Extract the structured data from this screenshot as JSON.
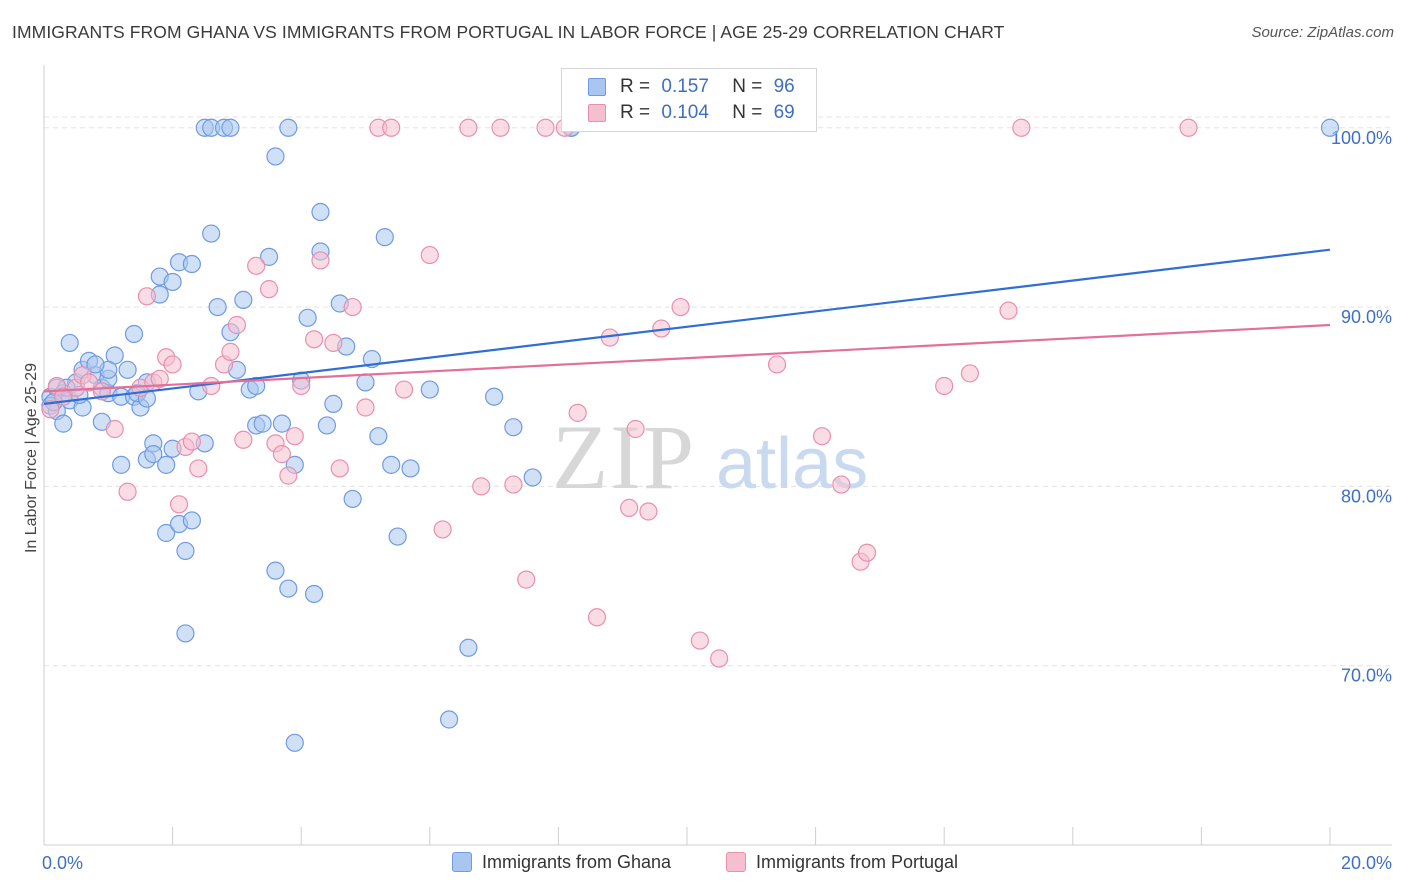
{
  "title": "IMMIGRANTS FROM GHANA VS IMMIGRANTS FROM PORTUGAL IN LABOR FORCE | AGE 25-29 CORRELATION CHART",
  "source": "Source: ZipAtlas.com",
  "watermark": {
    "zip": "ZIP",
    "atlas": "atlas"
  },
  "colors": {
    "ghana_fill": "#a9c6f0",
    "ghana_stroke": "#6f9be0",
    "ghana_line": "#2f6fd4",
    "portugal_fill": "#f6bfd0",
    "portugal_stroke": "#e98fae",
    "portugal_line": "#e2709a",
    "tick_text": "#3f6fc4",
    "grid": "#e3e3e3"
  },
  "legend": {
    "r_label": "R =",
    "n_label": "N =",
    "ghana": {
      "r": "0.157",
      "n": "96"
    },
    "portugal": {
      "r": "0.104",
      "n": "69"
    }
  },
  "chart_data": {
    "type": "scatter",
    "xlabel": "",
    "ylabel": "In Labor Force | Age 25-29",
    "xlim": [
      0,
      20
    ],
    "ylim": [
      60,
      103.5
    ],
    "x_tick_labels": [
      "0.0%",
      "20.0%"
    ],
    "y_ticks": [
      70,
      80,
      90,
      100
    ],
    "y_tick_labels": [
      "70.0%",
      "80.0%",
      "90.0%",
      "100.0%"
    ],
    "grid": true,
    "legend_position": "bottom",
    "series": [
      {
        "name": "Immigrants from Ghana",
        "trend": {
          "x": [
            0,
            20
          ],
          "y": [
            84.6,
            93.2
          ]
        },
        "points": [
          [
            0.1,
            85.0
          ],
          [
            0.1,
            84.5
          ],
          [
            0.2,
            85.5
          ],
          [
            0.2,
            84.2
          ],
          [
            0.3,
            85.2
          ],
          [
            0.3,
            83.5
          ],
          [
            0.4,
            88.0
          ],
          [
            0.4,
            84.8
          ],
          [
            0.5,
            85.8
          ],
          [
            0.6,
            86.5
          ],
          [
            0.6,
            84.4
          ],
          [
            0.7,
            87.0
          ],
          [
            0.8,
            86.2
          ],
          [
            0.9,
            85.5
          ],
          [
            0.9,
            83.6
          ],
          [
            1.0,
            85.2
          ],
          [
            1.0,
            86.0
          ],
          [
            1.1,
            87.3
          ],
          [
            1.2,
            81.2
          ],
          [
            1.2,
            85.0
          ],
          [
            1.3,
            86.5
          ],
          [
            1.4,
            88.5
          ],
          [
            1.4,
            85.0
          ],
          [
            1.5,
            84.4
          ],
          [
            1.6,
            81.5
          ],
          [
            1.6,
            85.8
          ],
          [
            1.7,
            82.4
          ],
          [
            1.7,
            81.8
          ],
          [
            1.8,
            90.7
          ],
          [
            1.8,
            91.7
          ],
          [
            1.9,
            77.4
          ],
          [
            1.9,
            81.2
          ],
          [
            2.0,
            82.1
          ],
          [
            2.0,
            91.4
          ],
          [
            2.1,
            92.5
          ],
          [
            2.1,
            77.9
          ],
          [
            2.2,
            71.8
          ],
          [
            2.2,
            76.4
          ],
          [
            2.3,
            78.1
          ],
          [
            2.4,
            85.3
          ],
          [
            2.5,
            82.4
          ],
          [
            2.5,
            100.0
          ],
          [
            2.6,
            94.1
          ],
          [
            2.6,
            100.0
          ],
          [
            2.7,
            90.0
          ],
          [
            2.8,
            100.0
          ],
          [
            2.9,
            100.0
          ],
          [
            2.9,
            88.6
          ],
          [
            3.0,
            86.5
          ],
          [
            3.1,
            90.4
          ],
          [
            3.2,
            85.4
          ],
          [
            3.3,
            85.6
          ],
          [
            3.3,
            83.4
          ],
          [
            3.4,
            83.5
          ],
          [
            3.5,
            92.8
          ],
          [
            3.6,
            98.4
          ],
          [
            3.6,
            75.3
          ],
          [
            3.7,
            83.5
          ],
          [
            3.8,
            100.0
          ],
          [
            3.8,
            74.3
          ],
          [
            3.9,
            81.2
          ],
          [
            3.9,
            65.7
          ],
          [
            4.0,
            85.9
          ],
          [
            4.1,
            89.4
          ],
          [
            4.2,
            74.0
          ],
          [
            4.3,
            95.3
          ],
          [
            4.3,
            93.1
          ],
          [
            4.4,
            83.4
          ],
          [
            4.5,
            84.6
          ],
          [
            4.6,
            90.2
          ],
          [
            4.7,
            87.8
          ],
          [
            4.8,
            79.3
          ],
          [
            5.0,
            85.8
          ],
          [
            5.1,
            87.1
          ],
          [
            5.2,
            82.8
          ],
          [
            5.3,
            93.9
          ],
          [
            5.4,
            81.2
          ],
          [
            5.5,
            77.2
          ],
          [
            1.0,
            86.5
          ],
          [
            0.8,
            86.8
          ],
          [
            5.7,
            81.0
          ],
          [
            6.0,
            85.4
          ],
          [
            6.3,
            67.0
          ],
          [
            6.6,
            71.0
          ],
          [
            7.0,
            85.0
          ],
          [
            7.3,
            83.3
          ],
          [
            7.6,
            80.5
          ],
          [
            8.2,
            100.0
          ],
          [
            8.2,
            100.0
          ],
          [
            0.15,
            84.7
          ],
          [
            0.35,
            85.5
          ],
          [
            0.55,
            85.1
          ],
          [
            1.45,
            85.2
          ],
          [
            1.6,
            84.9
          ],
          [
            2.3,
            92.4
          ],
          [
            20.0,
            100.0
          ]
        ]
      },
      {
        "name": "Immigrants from Portugal",
        "trend": {
          "x": [
            0,
            20
          ],
          "y": [
            85.3,
            89.0
          ]
        },
        "points": [
          [
            0.1,
            84.3
          ],
          [
            0.2,
            85.6
          ],
          [
            0.3,
            85.0
          ],
          [
            0.5,
            85.5
          ],
          [
            0.6,
            86.2
          ],
          [
            0.7,
            85.8
          ],
          [
            0.9,
            85.3
          ],
          [
            1.1,
            83.2
          ],
          [
            1.3,
            79.7
          ],
          [
            1.5,
            85.5
          ],
          [
            1.6,
            90.6
          ],
          [
            1.7,
            85.8
          ],
          [
            1.8,
            86.0
          ],
          [
            1.9,
            87.2
          ],
          [
            2.0,
            86.8
          ],
          [
            2.1,
            79.0
          ],
          [
            2.2,
            82.2
          ],
          [
            2.3,
            82.5
          ],
          [
            2.4,
            81.0
          ],
          [
            2.6,
            85.6
          ],
          [
            2.8,
            86.8
          ],
          [
            2.9,
            87.5
          ],
          [
            3.0,
            89.0
          ],
          [
            3.1,
            82.6
          ],
          [
            3.3,
            92.3
          ],
          [
            3.5,
            91.0
          ],
          [
            3.6,
            82.4
          ],
          [
            3.7,
            81.8
          ],
          [
            3.8,
            80.6
          ],
          [
            3.9,
            82.8
          ],
          [
            4.0,
            85.6
          ],
          [
            4.2,
            88.2
          ],
          [
            4.3,
            92.6
          ],
          [
            4.5,
            88.0
          ],
          [
            4.6,
            81.0
          ],
          [
            4.8,
            90.0
          ],
          [
            5.0,
            84.4
          ],
          [
            5.2,
            100.0
          ],
          [
            5.4,
            100.0
          ],
          [
            5.6,
            85.4
          ],
          [
            6.0,
            92.9
          ],
          [
            6.2,
            77.6
          ],
          [
            6.6,
            100.0
          ],
          [
            6.8,
            80.0
          ],
          [
            7.1,
            100.0
          ],
          [
            7.3,
            80.1
          ],
          [
            7.5,
            74.8
          ],
          [
            7.8,
            100.0
          ],
          [
            8.1,
            100.0
          ],
          [
            8.3,
            84.1
          ],
          [
            8.6,
            72.7
          ],
          [
            8.8,
            88.3
          ],
          [
            9.1,
            78.8
          ],
          [
            9.2,
            83.2
          ],
          [
            9.4,
            78.6
          ],
          [
            9.6,
            88.8
          ],
          [
            9.9,
            90.0
          ],
          [
            10.2,
            71.4
          ],
          [
            10.5,
            70.4
          ],
          [
            11.4,
            86.8
          ],
          [
            12.1,
            82.8
          ],
          [
            12.4,
            80.1
          ],
          [
            12.7,
            75.8
          ],
          [
            12.8,
            76.3
          ],
          [
            14.0,
            85.6
          ],
          [
            14.4,
            86.3
          ],
          [
            15.0,
            89.8
          ],
          [
            15.2,
            100.0
          ],
          [
            17.8,
            100.0
          ]
        ]
      }
    ]
  },
  "bottom_legend": {
    "ghana_label": "Immigrants from Ghana",
    "portugal_label": "Immigrants from Portugal"
  }
}
